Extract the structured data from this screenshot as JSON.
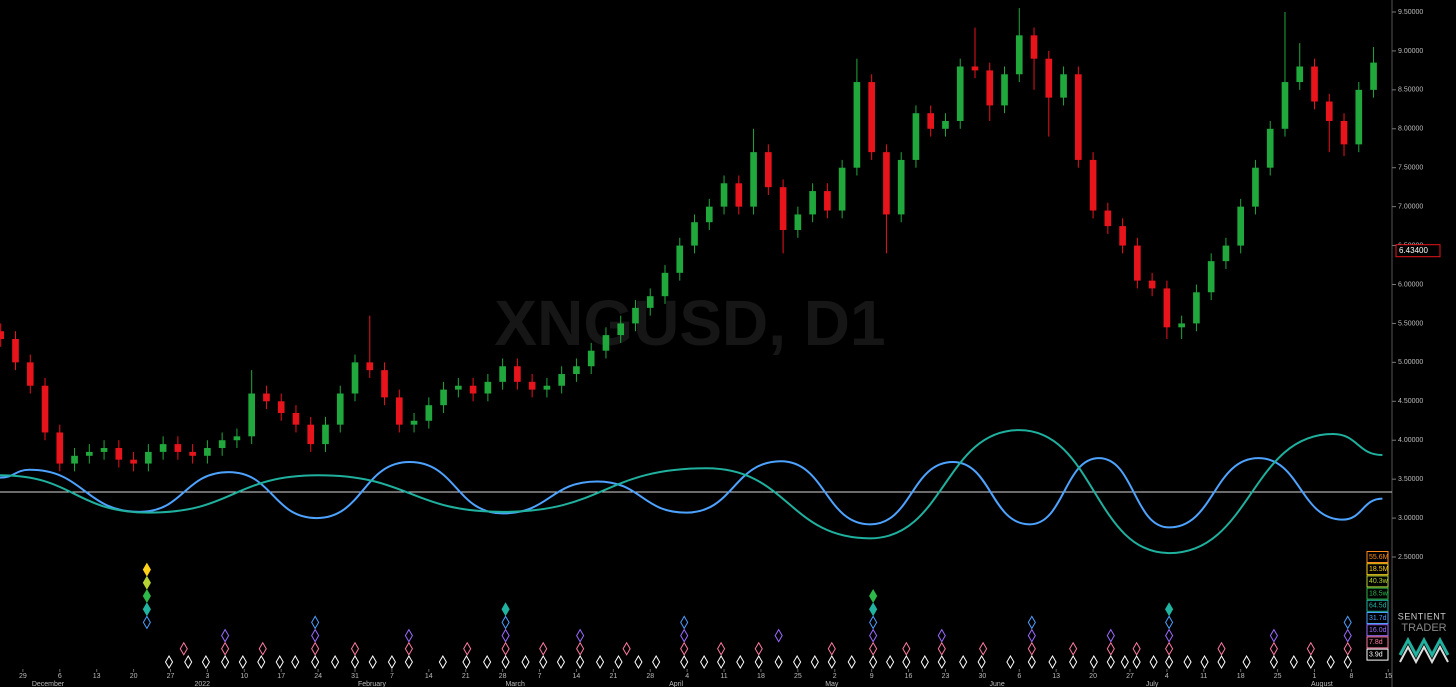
{
  "chart_data": {
    "type": "candlestick",
    "watermark": "XNGUSD, D1",
    "brand": [
      "SENTIENT",
      "TRADER"
    ],
    "up_color": "#20a83c",
    "down_color": "#e8141c",
    "xlim": [
      -3.1,
      185.5
    ],
    "ylim": [
      0.959,
      9.654
    ],
    "yticks": [
      {
        "value": 2.5,
        "label": "2.50000"
      },
      {
        "value": 3,
        "label": "3.00000"
      },
      {
        "value": 3.5,
        "label": "3.50000"
      },
      {
        "value": 4,
        "label": "4.00000"
      },
      {
        "value": 4.5,
        "label": "4.50000"
      },
      {
        "value": 5,
        "label": "5.00000"
      },
      {
        "value": 5.5,
        "label": "5.50000"
      },
      {
        "value": 6,
        "label": "6.00000"
      },
      {
        "value": 6.5,
        "label": "6.50000"
      },
      {
        "value": 7,
        "label": "7.00000"
      },
      {
        "value": 7.5,
        "label": "7.50000"
      },
      {
        "value": 8,
        "label": "8.00000"
      },
      {
        "value": 8.5,
        "label": "8.50000"
      },
      {
        "value": 9,
        "label": "9.00000"
      },
      {
        "value": 9.5,
        "label": "9.50000"
      }
    ],
    "current_price": {
      "value": 6.434,
      "label": "6.43400"
    },
    "xticks": [
      {
        "value": 0,
        "label": "29"
      },
      {
        "value": 5,
        "label": "6"
      },
      {
        "value": 10,
        "label": "13"
      },
      {
        "value": 15,
        "label": "20"
      },
      {
        "value": 20,
        "label": "27"
      },
      {
        "value": 25,
        "label": "3"
      },
      {
        "value": 30,
        "label": "10"
      },
      {
        "value": 35,
        "label": "17"
      },
      {
        "value": 40,
        "label": "24"
      },
      {
        "value": 45,
        "label": "31"
      },
      {
        "value": 50,
        "label": "7"
      },
      {
        "value": 55,
        "label": "14"
      },
      {
        "value": 60,
        "label": "21"
      },
      {
        "value": 65,
        "label": "28"
      },
      {
        "value": 70,
        "label": "7"
      },
      {
        "value": 75,
        "label": "14"
      },
      {
        "value": 80,
        "label": "21"
      },
      {
        "value": 85,
        "label": "28"
      },
      {
        "value": 90,
        "label": "4"
      },
      {
        "value": 95,
        "label": "11"
      },
      {
        "value": 100,
        "label": "18"
      },
      {
        "value": 105,
        "label": "25"
      },
      {
        "value": 110,
        "label": "2"
      },
      {
        "value": 115,
        "label": "9"
      },
      {
        "value": 120,
        "label": "16"
      },
      {
        "value": 125,
        "label": "23"
      },
      {
        "value": 130,
        "label": "30"
      },
      {
        "value": 135,
        "label": "6"
      },
      {
        "value": 140,
        "label": "13"
      },
      {
        "value": 145,
        "label": "20"
      },
      {
        "value": 150,
        "label": "27"
      },
      {
        "value": 155,
        "label": "4"
      },
      {
        "value": 160,
        "label": "11"
      },
      {
        "value": 165,
        "label": "18"
      },
      {
        "value": 170,
        "label": "25"
      },
      {
        "value": 175,
        "label": "1"
      },
      {
        "value": 180,
        "label": "8"
      },
      {
        "value": 185,
        "label": "15"
      }
    ],
    "month_labels": [
      {
        "value": 3.4,
        "label": "December"
      },
      {
        "value": 24.3,
        "label": "2022"
      },
      {
        "value": 47.3,
        "label": "February"
      },
      {
        "value": 66.7,
        "label": "March"
      },
      {
        "value": 88.5,
        "label": "April"
      },
      {
        "value": 109.6,
        "label": "May"
      },
      {
        "value": 132,
        "label": "June"
      },
      {
        "value": 153,
        "label": "July"
      },
      {
        "value": 176,
        "label": "August"
      }
    ],
    "x": [
      -3,
      -1,
      1,
      3,
      5,
      7,
      9,
      11,
      13,
      15,
      17,
      19,
      21,
      23,
      25,
      27,
      29,
      31,
      33,
      35,
      37,
      39,
      41,
      43,
      45,
      47,
      49,
      51,
      53,
      55,
      57,
      59,
      61,
      63,
      65,
      67,
      69,
      71,
      73,
      75,
      77,
      79,
      81,
      83,
      85,
      87,
      89,
      91,
      93,
      95,
      97,
      99,
      101,
      103,
      105,
      107,
      109,
      111,
      113,
      115,
      117,
      119,
      121,
      123,
      125,
      127,
      129,
      131,
      133,
      135,
      137,
      139,
      141,
      143,
      145,
      147,
      149,
      151,
      153,
      155,
      157,
      159,
      161,
      163,
      165,
      167,
      169,
      171,
      173,
      175,
      177,
      179,
      181,
      183
    ],
    "open": [
      5.4,
      5.3,
      5.0,
      4.7,
      4.1,
      3.7,
      3.8,
      3.85,
      3.9,
      3.75,
      3.7,
      3.85,
      3.95,
      3.85,
      3.8,
      3.9,
      4.0,
      4.05,
      4.6,
      4.5,
      4.35,
      4.2,
      3.95,
      4.2,
      4.6,
      5.0,
      4.9,
      4.55,
      4.2,
      4.25,
      4.45,
      4.65,
      4.7,
      4.6,
      4.75,
      4.95,
      4.75,
      4.65,
      4.7,
      4.85,
      4.95,
      5.15,
      5.35,
      5.5,
      5.7,
      5.85,
      6.15,
      6.5,
      6.8,
      7.0,
      7.3,
      7.0,
      7.7,
      7.25,
      6.7,
      6.9,
      7.2,
      6.95,
      7.5,
      8.6,
      7.7,
      6.9,
      7.6,
      8.2,
      8.0,
      8.1,
      8.8,
      8.75,
      8.3,
      8.7,
      9.2,
      8.9,
      8.4,
      8.7,
      7.6,
      6.95,
      6.75,
      6.5,
      6.05,
      5.95,
      5.45,
      5.5,
      5.9,
      6.3,
      6.5,
      7.0,
      7.5,
      8.0,
      8.6,
      8.8,
      8.35,
      8.1,
      7.8,
      8.5
    ],
    "high": [
      5.5,
      5.4,
      5.1,
      4.8,
      4.2,
      3.9,
      3.95,
      4.0,
      4.0,
      3.85,
      3.95,
      4.05,
      4.05,
      3.95,
      4.0,
      4.1,
      4.15,
      4.9,
      4.7,
      4.6,
      4.45,
      4.3,
      4.3,
      4.7,
      5.1,
      5.6,
      5.0,
      4.65,
      4.35,
      4.55,
      4.75,
      4.8,
      4.8,
      4.85,
      5.05,
      5.05,
      4.85,
      4.8,
      4.95,
      5.05,
      5.25,
      5.45,
      5.6,
      5.8,
      5.95,
      6.25,
      6.6,
      6.9,
      7.1,
      7.4,
      7.4,
      8.0,
      7.8,
      7.35,
      7.0,
      7.3,
      7.3,
      7.6,
      8.9,
      8.7,
      7.8,
      7.7,
      8.3,
      8.3,
      8.2,
      8.9,
      9.3,
      8.85,
      8.8,
      9.55,
      9.3,
      9.0,
      8.8,
      8.8,
      7.7,
      7.05,
      6.85,
      6.6,
      6.15,
      6.05,
      5.6,
      6.0,
      6.4,
      6.6,
      7.1,
      7.6,
      8.1,
      9.5,
      9.1,
      8.9,
      8.45,
      8.2,
      8.6,
      9.05
    ],
    "low": [
      5.2,
      4.9,
      4.6,
      4.0,
      3.6,
      3.6,
      3.7,
      3.75,
      3.65,
      3.6,
      3.6,
      3.75,
      3.75,
      3.7,
      3.7,
      3.8,
      3.9,
      3.95,
      4.4,
      4.25,
      4.1,
      3.85,
      3.85,
      4.1,
      4.5,
      4.8,
      4.45,
      4.1,
      4.1,
      4.15,
      4.35,
      4.55,
      4.5,
      4.5,
      4.65,
      4.65,
      4.55,
      4.55,
      4.6,
      4.75,
      4.85,
      5.05,
      5.25,
      5.4,
      5.6,
      5.75,
      6.05,
      6.4,
      6.7,
      6.9,
      6.9,
      6.9,
      7.15,
      6.4,
      6.6,
      6.8,
      6.85,
      6.85,
      7.4,
      7.6,
      6.4,
      6.8,
      7.5,
      7.9,
      7.9,
      8.0,
      8.65,
      8.1,
      8.2,
      8.6,
      8.5,
      7.9,
      8.3,
      7.5,
      6.85,
      6.65,
      6.4,
      5.95,
      5.85,
      5.3,
      5.3,
      5.4,
      5.8,
      6.2,
      6.4,
      6.9,
      7.4,
      7.9,
      8.5,
      8.25,
      7.7,
      7.65,
      7.7,
      8.4
    ],
    "close": [
      5.3,
      5.0,
      4.7,
      4.1,
      3.7,
      3.8,
      3.85,
      3.9,
      3.75,
      3.7,
      3.85,
      3.95,
      3.85,
      3.8,
      3.9,
      4.0,
      4.05,
      4.6,
      4.5,
      4.35,
      4.2,
      3.95,
      4.2,
      4.6,
      5.0,
      4.9,
      4.55,
      4.2,
      4.25,
      4.45,
      4.65,
      4.7,
      4.6,
      4.75,
      4.95,
      4.75,
      4.65,
      4.7,
      4.85,
      4.95,
      5.15,
      5.35,
      5.5,
      5.7,
      5.85,
      6.15,
      6.5,
      6.8,
      7.0,
      7.3,
      7.0,
      7.7,
      7.25,
      6.7,
      6.9,
      7.2,
      6.95,
      7.5,
      8.6,
      7.7,
      6.9,
      7.6,
      8.2,
      8.0,
      8.1,
      8.8,
      8.75,
      8.3,
      8.7,
      9.2,
      8.9,
      8.4,
      8.7,
      7.6,
      6.95,
      6.75,
      6.5,
      6.05,
      5.95,
      5.45,
      5.5,
      5.9,
      6.3,
      6.5,
      7.0,
      7.5,
      8.0,
      8.6,
      8.8,
      8.35,
      8.1,
      7.8,
      8.5,
      8.85
    ],
    "hline": {
      "value": 3.335,
      "color": "#d8d8d8"
    },
    "overlays": [
      {
        "color": "#4da3ff",
        "x": [
          -3.1,
          0.9,
          15.8,
          27.9,
          39.8,
          52.4,
          65.0,
          77.8,
          89.9,
          102.7,
          114.8,
          126.0,
          136.4,
          145.8,
          155.3,
          167.4,
          178.8,
          184.2
        ],
        "values": [
          3.52,
          3.62,
          3.08,
          3.59,
          3.0,
          3.72,
          3.06,
          3.47,
          3.07,
          3.73,
          2.92,
          3.72,
          2.92,
          3.77,
          2.88,
          3.77,
          2.98,
          3.25
        ]
      },
      {
        "color": "#1fb09e",
        "x": [
          -3.1,
          17.1,
          40.0,
          65.0,
          92.6,
          114.8,
          135.0,
          155.3,
          177.5,
          184.2
        ],
        "values": [
          3.55,
          3.07,
          3.55,
          3.08,
          3.64,
          2.74,
          4.13,
          2.55,
          4.08,
          3.81
        ]
      }
    ],
    "cycles": [
      {
        "name": "55.6M",
        "color": "#ff8c1a",
        "x": []
      },
      {
        "name": "18.5M",
        "color": "#ffd21a",
        "x": [
          16.8
        ]
      },
      {
        "name": "40.3w",
        "color": "#b5d334",
        "x": [
          16.8
        ]
      },
      {
        "name": "18.5w",
        "color": "#2eb84a",
        "x": [
          16.8,
          115.2
        ]
      },
      {
        "name": "64.5d",
        "color": "#21b3a0",
        "x": [
          16.8,
          65.4,
          115.2,
          155.3
        ]
      },
      {
        "name": "31.7d",
        "color": "#4d9fff",
        "x": [
          16.8,
          39.6,
          65.4,
          89.6,
          115.2,
          136.7,
          155.3,
          179.5
        ]
      },
      {
        "name": "16.0d",
        "color": "#9b6bff",
        "x": [
          27.4,
          39.6,
          52.3,
          65.4,
          75.5,
          89.6,
          102.4,
          115.2,
          124.5,
          136.7,
          147.4,
          155.3,
          169.5,
          179.5
        ]
      },
      {
        "name": "7.8d",
        "color": "#ff7aa0",
        "x": [
          21.8,
          27.4,
          32.5,
          39.6,
          45,
          52.3,
          60.2,
          65.4,
          70.5,
          75.5,
          81.8,
          89.6,
          94.6,
          99.7,
          109.6,
          115.2,
          119.7,
          124.5,
          130.1,
          136.7,
          142.3,
          147.4,
          150.9,
          155.3,
          162.4,
          169.5,
          174.5,
          179.5
        ]
      },
      {
        "name": "3.9d",
        "color": "#ffffff",
        "x": [
          19.8,
          22.4,
          24.8,
          27.4,
          29.8,
          32.3,
          34.8,
          36.9,
          39.6,
          42.3,
          45.0,
          47.4,
          50.0,
          52.3,
          56.9,
          60.1,
          62.9,
          65.4,
          68.1,
          70.5,
          72.9,
          75.5,
          78.2,
          80.7,
          83.4,
          85.8,
          89.6,
          92.3,
          94.6,
          97.2,
          99.7,
          102.4,
          104.9,
          107.3,
          109.6,
          112.3,
          115.2,
          117.5,
          119.7,
          122.2,
          124.5,
          127.4,
          129.9,
          133.8,
          136.7,
          139.5,
          142.3,
          145.1,
          147.4,
          149.3,
          150.9,
          153.2,
          155.3,
          157.8,
          160.1,
          162.4,
          165.8,
          169.5,
          172.2,
          174.5,
          177.2,
          179.5
        ]
      }
    ]
  }
}
